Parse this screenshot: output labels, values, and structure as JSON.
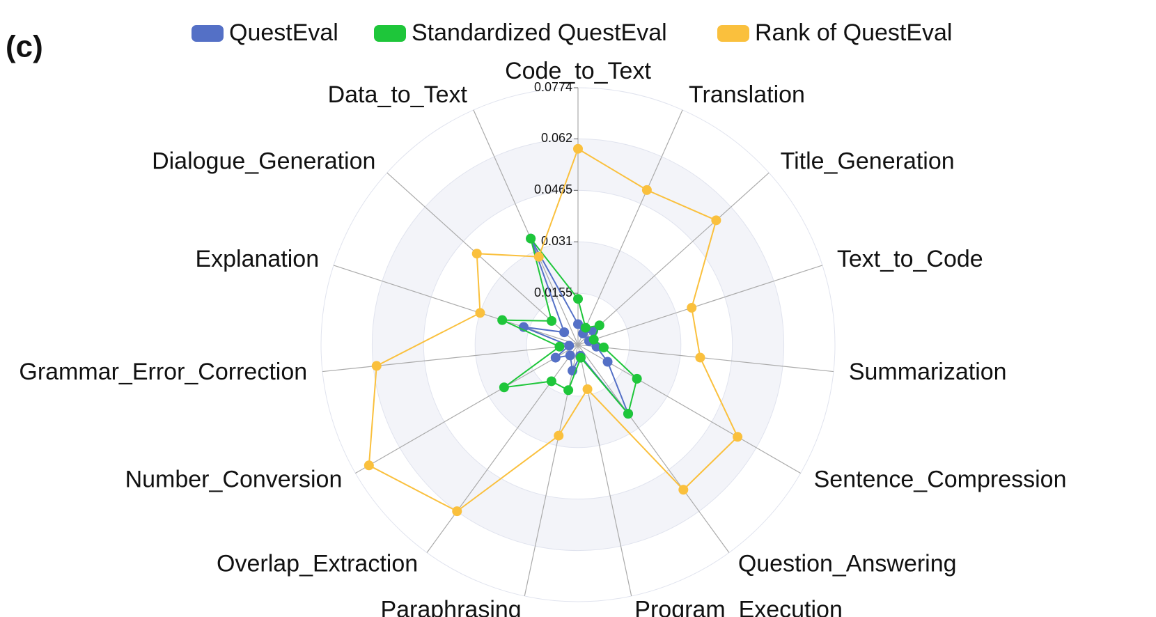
{
  "chart_data": {
    "type": "radar",
    "panel_label": "(c)",
    "categories": [
      "Code_to_Text",
      "Translation",
      "Title_Generation",
      "Text_to_Code",
      "Summarization",
      "Sentence_Compression",
      "Question_Answering",
      "Program_Execution",
      "Paraphrasing",
      "Overlap_Extraction",
      "Number_Conversion",
      "Grammar_Error_Correction",
      "Explanation",
      "Dialogue_Generation",
      "Data_to_Text"
    ],
    "series": [
      {
        "name": "QuestEval",
        "color": "#5470c6",
        "values": [
          0.0062,
          0.0037,
          0.0062,
          0.0035,
          0.0056,
          0.0103,
          0.0257,
          0.0034,
          0.008,
          0.004,
          0.0078,
          0.0027,
          0.0172,
          0.0056,
          0.035
        ]
      },
      {
        "name": "Standardized QuestEval",
        "color": "#1ec63a",
        "values": [
          0.0138,
          0.0056,
          0.0087,
          0.005,
          0.0078,
          0.0205,
          0.0257,
          0.004,
          0.014,
          0.0136,
          0.0257,
          0.0056,
          0.024,
          0.0107,
          0.035
        ]
      },
      {
        "name": "Rank of QuestEval",
        "color": "#fac03d",
        "values": [
          0.059,
          0.051,
          0.056,
          0.036,
          0.037,
          0.0555,
          0.054,
          0.0137,
          0.028,
          0.062,
          0.0727,
          0.061,
          0.031,
          0.041,
          0.029
        ]
      }
    ],
    "ylim": [
      0,
      0.0774
    ],
    "yticks": [
      0.0155,
      0.031,
      0.0465,
      0.062,
      0.0774
    ]
  }
}
